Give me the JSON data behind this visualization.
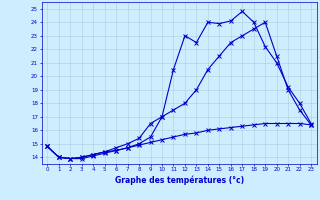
{
  "xlabel": "Graphe des températures (°c)",
  "background_color": "#cceeff",
  "line_color": "#0000cc",
  "grid_color": "#aaccdd",
  "xlim": [
    -0.5,
    23.5
  ],
  "ylim": [
    13.5,
    25.5
  ],
  "xticks": [
    0,
    1,
    2,
    3,
    4,
    5,
    6,
    7,
    8,
    9,
    10,
    11,
    12,
    13,
    14,
    15,
    16,
    17,
    18,
    19,
    20,
    21,
    22,
    23
  ],
  "yticks": [
    14,
    15,
    16,
    17,
    18,
    19,
    20,
    21,
    22,
    23,
    24,
    25
  ],
  "hours": [
    0,
    1,
    2,
    3,
    4,
    5,
    6,
    7,
    8,
    9,
    10,
    11,
    12,
    13,
    14,
    15,
    16,
    17,
    18,
    19,
    20,
    21,
    22,
    23
  ],
  "line1": [
    14.8,
    14.0,
    13.9,
    13.9,
    14.1,
    14.3,
    14.5,
    14.7,
    15.0,
    15.5,
    17.0,
    20.5,
    23.0,
    22.5,
    24.0,
    23.9,
    24.1,
    24.8,
    24.0,
    22.2,
    21.0,
    19.2,
    18.0,
    16.5
  ],
  "line2": [
    14.8,
    14.0,
    13.9,
    14.0,
    14.2,
    14.4,
    14.7,
    15.0,
    15.4,
    16.5,
    17.0,
    17.5,
    18.0,
    19.0,
    20.5,
    21.5,
    22.5,
    23.0,
    23.5,
    24.0,
    21.5,
    19.0,
    17.5,
    16.4
  ],
  "line3": [
    14.8,
    14.0,
    13.9,
    14.0,
    14.2,
    14.4,
    14.5,
    14.7,
    14.9,
    15.1,
    15.3,
    15.5,
    15.7,
    15.8,
    16.0,
    16.1,
    16.2,
    16.3,
    16.4,
    16.5,
    16.5,
    16.5,
    16.5,
    16.4
  ]
}
